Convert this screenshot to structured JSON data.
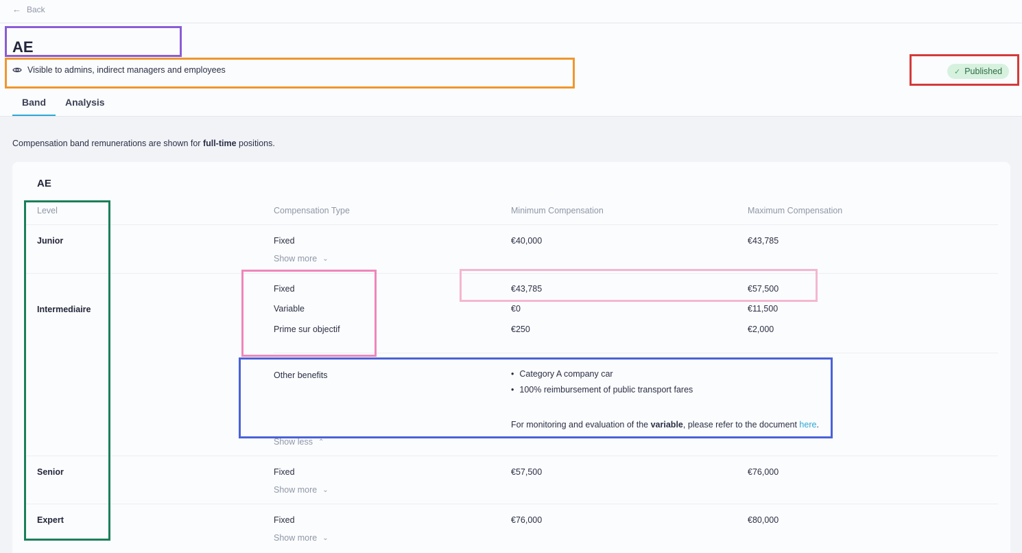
{
  "nav": {
    "back_label": "Back"
  },
  "header": {
    "title": "AE",
    "visibility_text": "Visible to admins, indirect managers and employees",
    "status_badge": "Published",
    "tabs": [
      {
        "label": "Band"
      },
      {
        "label": "Analysis"
      }
    ]
  },
  "note": {
    "prefix": "Compensation band remunerations are shown for ",
    "bold": "full-time",
    "suffix": " positions."
  },
  "band": {
    "title": "AE",
    "columns": [
      "Level",
      "Compensation Type",
      "Minimum Compensation",
      "Maximum Compensation"
    ],
    "rows": [
      {
        "level": "Junior",
        "items": [
          {
            "type": "Fixed",
            "min": "€40,000",
            "max": "€43,785"
          }
        ],
        "toggle": "Show more"
      },
      {
        "level": "Intermediaire",
        "items": [
          {
            "type": "Fixed",
            "min": "€43,785",
            "max": "€57,500"
          },
          {
            "type": "Variable",
            "min": "€0",
            "max": "€11,500"
          },
          {
            "type": "Prime sur objectif",
            "min": "€250",
            "max": "€2,000"
          }
        ],
        "benefits_label": "Other benefits",
        "benefits": [
          "Category A company car",
          "100% reimbursement of public transport fares"
        ],
        "monitoring": {
          "prefix": "For monitoring and evaluation of the ",
          "bold": "variable",
          "middle": ", please refer to the document ",
          "link": "here",
          "suffix": "."
        },
        "toggle": "Show less"
      },
      {
        "level": "Senior",
        "items": [
          {
            "type": "Fixed",
            "min": "€57,500",
            "max": "€76,000"
          }
        ],
        "toggle": "Show more"
      },
      {
        "level": "Expert",
        "items": [
          {
            "type": "Fixed",
            "min": "€76,000",
            "max": "€80,000"
          }
        ],
        "toggle": "Show more"
      }
    ]
  },
  "colors": {
    "accent": "#2aa7d4",
    "badge_bg": "#d7f1df",
    "badge_text": "#2d6b44"
  },
  "annotations": [
    {
      "color": "#8a5cd6"
    },
    {
      "color": "#f0962e"
    },
    {
      "color": "#d43a3a"
    },
    {
      "color": "#1a7f5a"
    },
    {
      "color": "#ef86bb"
    },
    {
      "color": "#f4b6d0"
    },
    {
      "color": "#4a62d8"
    }
  ]
}
